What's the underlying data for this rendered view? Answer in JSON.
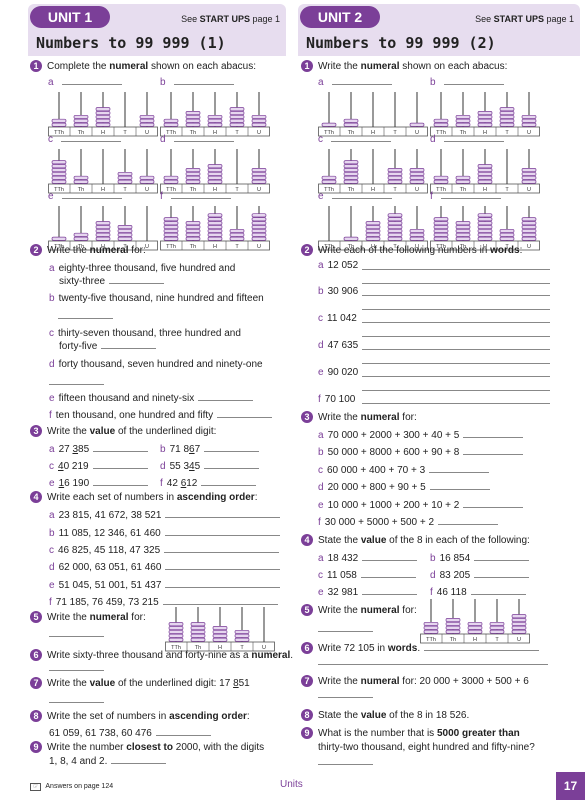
{
  "abacus_columns": [
    "TTh",
    "Th",
    "H",
    "T",
    "U"
  ],
  "unit1": {
    "badge": "UNIT 1",
    "see": "See ",
    "see_ref": "START UPS",
    "see_page": " page 1",
    "title": "Numbers to 99 999 (1)",
    "q1": {
      "num": "1",
      "prompt": [
        "Complete the ",
        "numeral",
        " shown on each abacus:"
      ],
      "abaci": [
        {
          "letter": "a",
          "beads": [
            2,
            3,
            5,
            0,
            3
          ]
        },
        {
          "letter": "b",
          "beads": [
            2,
            4,
            3,
            5,
            3
          ]
        },
        {
          "letter": "c",
          "beads": [
            6,
            2,
            0,
            3,
            2
          ]
        },
        {
          "letter": "d",
          "beads": [
            2,
            4,
            5,
            0,
            4
          ]
        },
        {
          "letter": "e",
          "beads": [
            1,
            2,
            5,
            4,
            0
          ]
        },
        {
          "letter": "f",
          "beads": [
            6,
            5,
            7,
            3,
            7
          ]
        }
      ]
    },
    "q2": {
      "num": "2",
      "prompt": [
        "Write the ",
        "numeral",
        " for:"
      ],
      "items": [
        {
          "letter": "a",
          "text": [
            "eighty-three thousand, five hundred and",
            "sixty-three"
          ]
        },
        {
          "letter": "b",
          "text": [
            "twenty-five thousand, nine hundred and fifteen"
          ]
        },
        {
          "letter": "c",
          "text": [
            "thirty-seven thousand, three hundred and",
            "forty-five"
          ]
        },
        {
          "letter": "d",
          "text": [
            "forty thousand, seven hundred and ninety-one"
          ]
        },
        {
          "letter": "e",
          "text": [
            "fifteen thousand and ninety-six"
          ]
        },
        {
          "letter": "f",
          "text": [
            "ten thousand, one hundred and fifty"
          ]
        }
      ]
    },
    "q3": {
      "num": "3",
      "prompt": [
        "Write the ",
        "value",
        " of the underlined digit:"
      ],
      "items": [
        {
          "letter": "a",
          "before": "27 ",
          "digit": "3",
          "after": "85"
        },
        {
          "letter": "b",
          "before": "71 8",
          "digit": "6",
          "after": "7"
        },
        {
          "letter": "c",
          "digit": "4",
          "after": "0 219"
        },
        {
          "letter": "d",
          "before": "55 3",
          "digit": "4",
          "after": "5"
        },
        {
          "letter": "e",
          "digit": "1",
          "after": "6 190"
        },
        {
          "letter": "f",
          "before": "42 ",
          "digit": "6",
          "after": "12"
        }
      ]
    },
    "q4": {
      "num": "4",
      "prompt": [
        "Write each set of numbers in ",
        "ascending order",
        ":"
      ],
      "items": [
        {
          "letter": "a",
          "text": "23 815, 41 672, 38 521"
        },
        {
          "letter": "b",
          "text": "11 085, 12 346, 61 460"
        },
        {
          "letter": "c",
          "text": "46 825, 45 118, 47 325"
        },
        {
          "letter": "d",
          "text": "62 000, 63 051, 61 460"
        },
        {
          "letter": "e",
          "text": "51 045, 51 001, 51 437"
        },
        {
          "letter": "f",
          "text": "71 185, 76 459, 73 215"
        }
      ]
    },
    "q5": {
      "num": "5",
      "prompt": [
        "Write the ",
        "numeral",
        " for:"
      ],
      "abacus": {
        "beads": [
          5,
          5,
          4,
          3,
          0
        ]
      }
    },
    "q6": {
      "num": "6",
      "prompt": [
        "Write sixty-three thousand and forty-nine as a ",
        "numeral",
        "."
      ]
    },
    "q7": {
      "num": "7",
      "prompt": [
        "Write the ",
        "value",
        " of the underlined digit: "
      ],
      "number": {
        "before": "17 ",
        "digit": "8",
        "after": "51"
      }
    },
    "q8": {
      "num": "8",
      "prompt": [
        "Write the set of numbers in ",
        "ascending order",
        ":"
      ],
      "numbers": "61 059, 61 738, 60 476"
    },
    "q9": {
      "num": "9",
      "prompt": [
        "Write the number ",
        "closest to",
        " 2000, with the digits"
      ],
      "line2": "1, 8, 4 and 2."
    }
  },
  "unit2": {
    "badge": "UNIT 2",
    "see": "See ",
    "see_ref": "START UPS",
    "see_page": " page 1",
    "title": "Numbers to 99 999 (2)",
    "q1": {
      "num": "1",
      "prompt": [
        "Write the ",
        "numeral",
        " shown on each abacus:"
      ],
      "abaci": [
        {
          "letter": "a",
          "beads": [
            1,
            2,
            0,
            0,
            1
          ]
        },
        {
          "letter": "b",
          "beads": [
            2,
            3,
            4,
            5,
            3
          ]
        },
        {
          "letter": "c",
          "beads": [
            2,
            6,
            0,
            4,
            4
          ]
        },
        {
          "letter": "d",
          "beads": [
            2,
            2,
            5,
            0,
            4
          ]
        },
        {
          "letter": "e",
          "beads": [
            0,
            1,
            5,
            7,
            3
          ]
        },
        {
          "letter": "f",
          "beads": [
            6,
            5,
            7,
            3,
            6
          ]
        }
      ]
    },
    "q2": {
      "num": "2",
      "prompt": [
        "Write each of the following numbers in ",
        "words",
        ":"
      ],
      "items": [
        {
          "letter": "a",
          "number": "12 052"
        },
        {
          "letter": "b",
          "number": "30 906"
        },
        {
          "letter": "c",
          "number": "11 042"
        },
        {
          "letter": "d",
          "number": "47 635"
        },
        {
          "letter": "e",
          "number": "90 020"
        },
        {
          "letter": "f",
          "number": "70 100"
        }
      ]
    },
    "q3": {
      "num": "3",
      "prompt": [
        "Write the ",
        "numeral",
        " for:"
      ],
      "items": [
        {
          "letter": "a",
          "text": "70 000 + 2000 + 300 + 40 + 5"
        },
        {
          "letter": "b",
          "text": "50 000 + 8000 + 600 + 90 + 8"
        },
        {
          "letter": "c",
          "text": "60 000 + 400 + 70 + 3"
        },
        {
          "letter": "d",
          "text": "20 000 + 800 + 90 + 5"
        },
        {
          "letter": "e",
          "text": "10 000 + 1000 + 200 + 10 + 2"
        },
        {
          "letter": "f",
          "text": "30 000 + 5000 + 500 + 2"
        }
      ]
    },
    "q4": {
      "num": "4",
      "prompt": [
        "State the ",
        "value",
        " of the 8 in each of the following:"
      ],
      "items": [
        {
          "letter": "a",
          "number": "18 432"
        },
        {
          "letter": "b",
          "number": "16 854"
        },
        {
          "letter": "c",
          "number": "11 058"
        },
        {
          "letter": "d",
          "number": "83 205"
        },
        {
          "letter": "e",
          "number": "32 981"
        },
        {
          "letter": "f",
          "number": "46 118"
        }
      ]
    },
    "q5": {
      "num": "5",
      "prompt": [
        "Write the ",
        "numeral",
        " for:"
      ],
      "abacus": {
        "beads": [
          3,
          4,
          3,
          3,
          5
        ]
      }
    },
    "q6": {
      "num": "6",
      "prompt": [
        "Write 72 105 in ",
        "words",
        "."
      ]
    },
    "q7": {
      "num": "7",
      "prompt": [
        "Write the ",
        "numeral",
        " for: 20 000 + 3000 + 500 + 6"
      ]
    },
    "q8": {
      "num": "8",
      "prompt": [
        "State the ",
        "value",
        " of the 8 in 18 526."
      ]
    },
    "q9": {
      "num": "9",
      "prompt": [
        "What is the number that is ",
        "5000 greater than"
      ],
      "line2": "thirty-two thousand, eight hundred and fifty-nine?"
    }
  },
  "footer": {
    "answers": "Answers on page 124",
    "section": "Units",
    "page": "17"
  }
}
